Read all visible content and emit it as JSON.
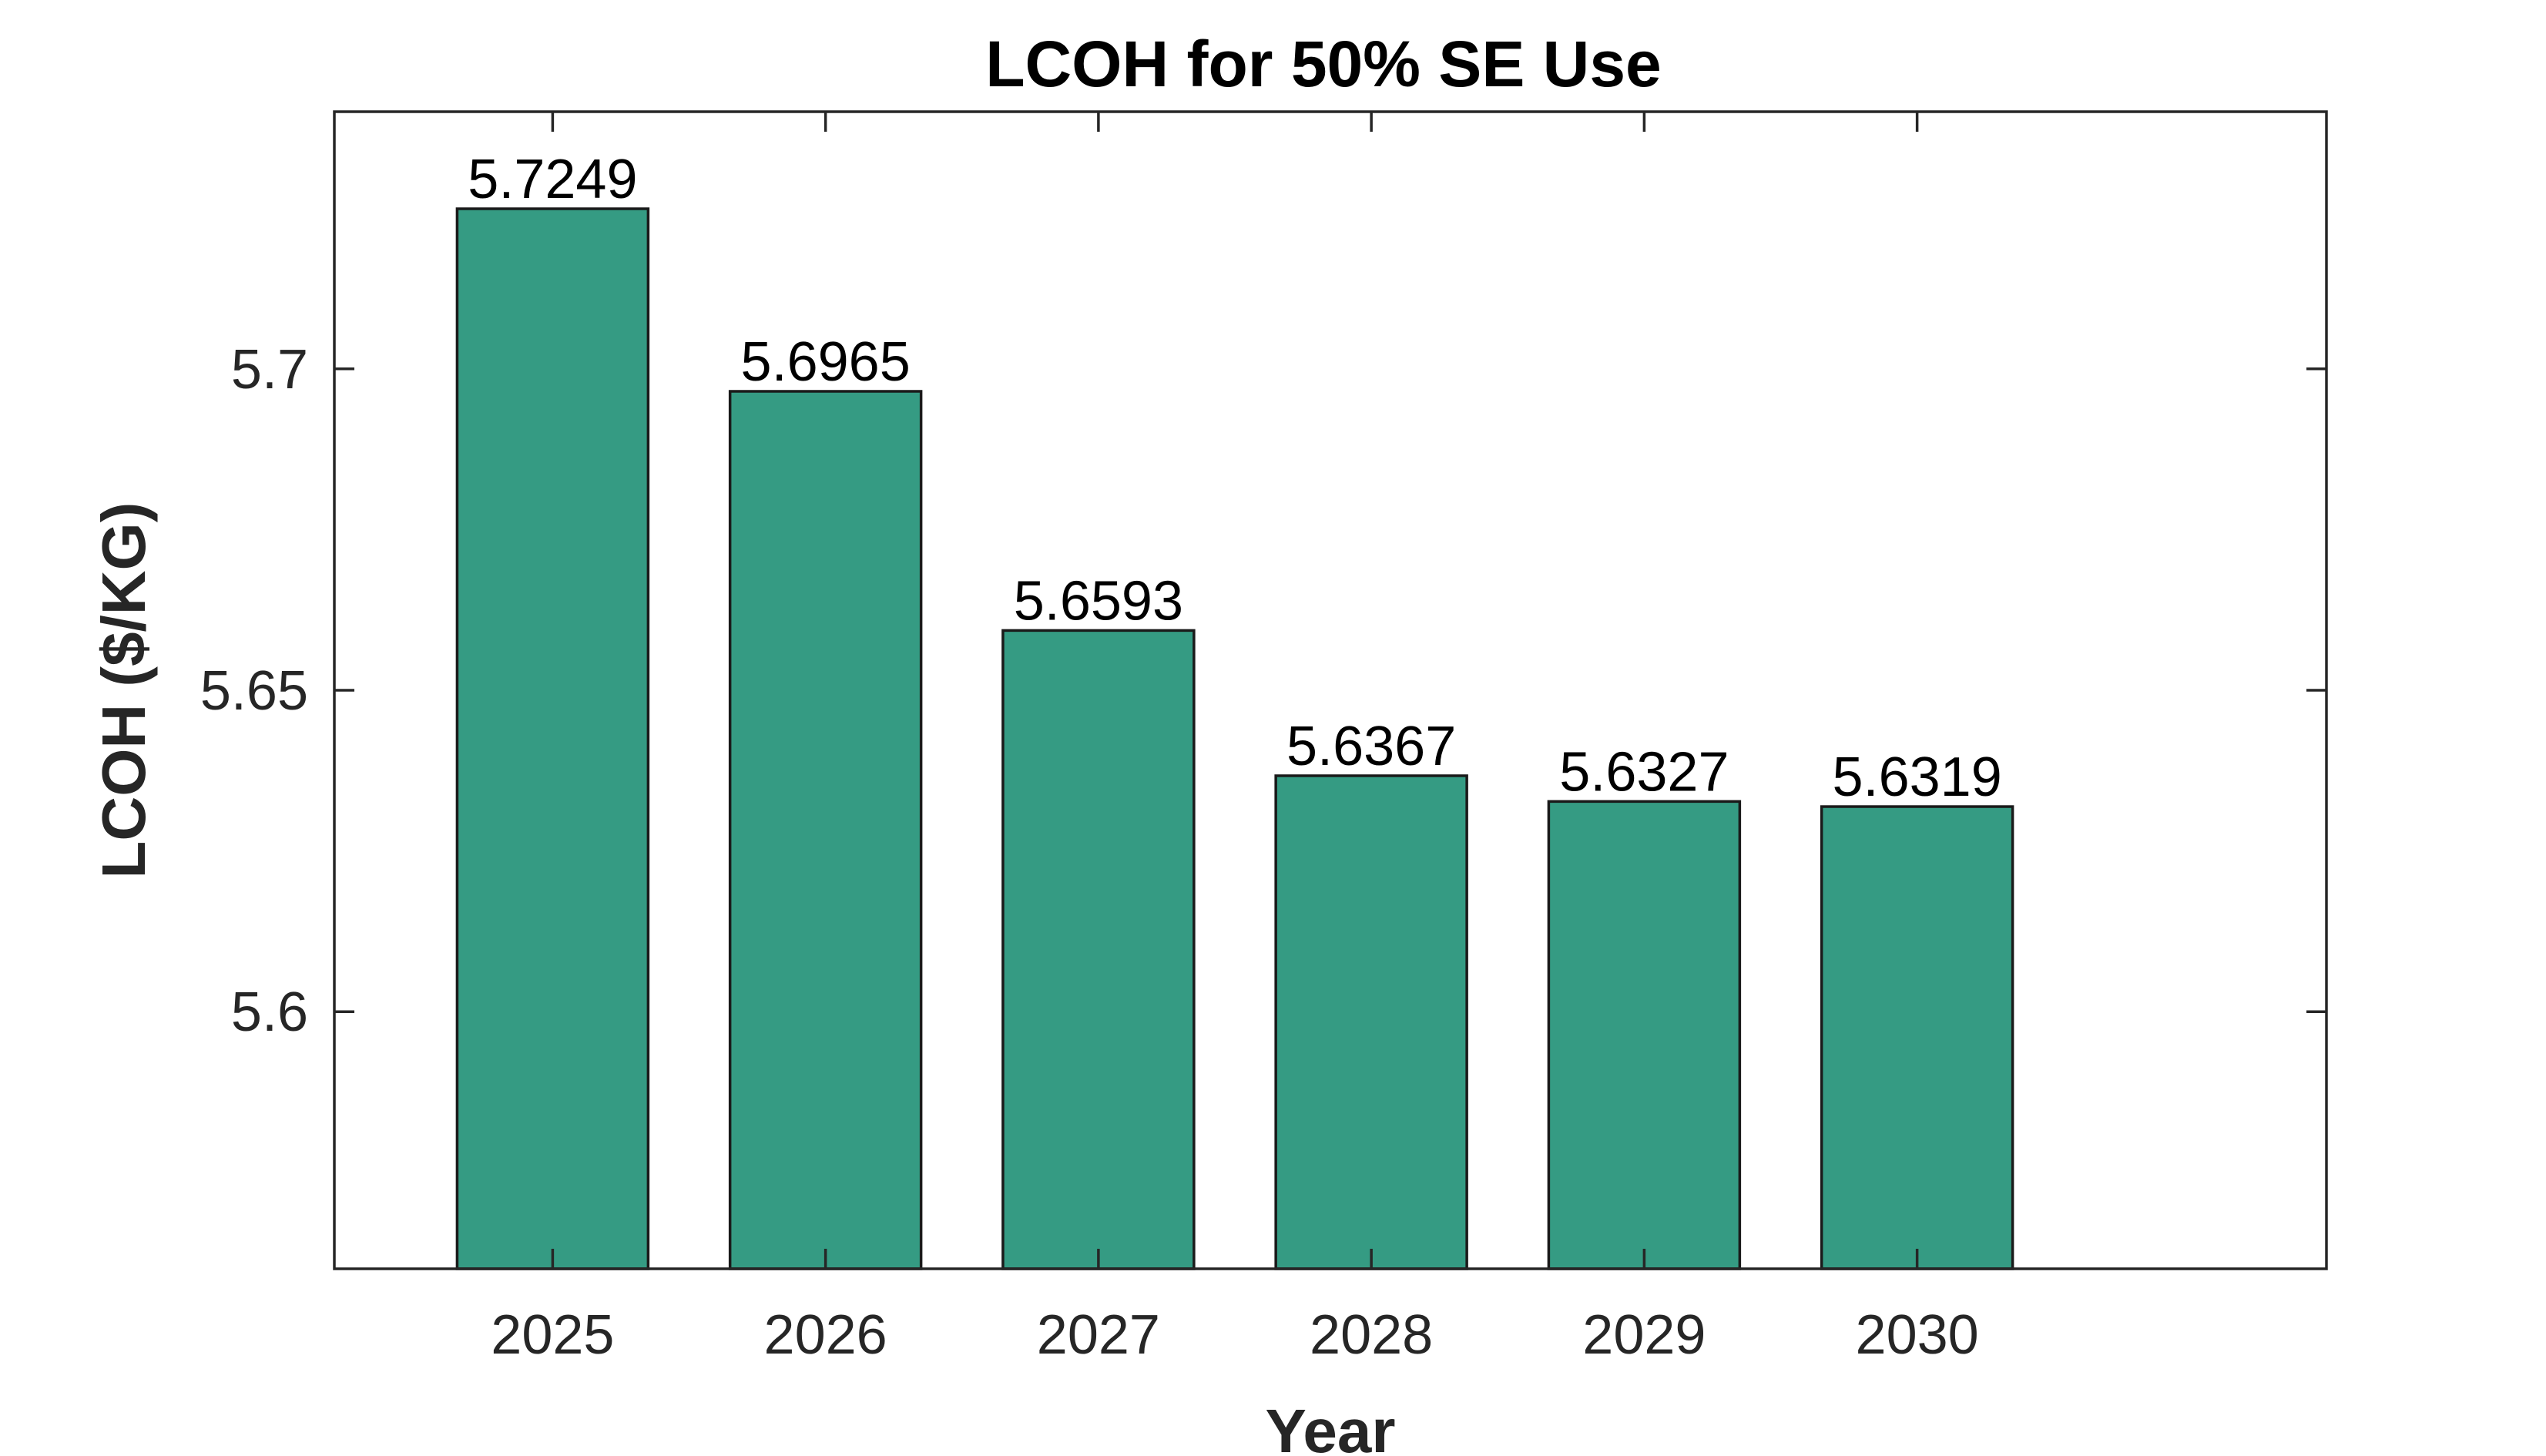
{
  "chart_data": {
    "type": "bar",
    "title": "LCOH for 50% SE Use",
    "xlabel": "Year",
    "ylabel": "LCOH ($/KG)",
    "categories": [
      "2025",
      "2026",
      "2027",
      "2028",
      "2029",
      "2030"
    ],
    "values": [
      5.7249,
      5.6965,
      5.6593,
      5.6367,
      5.6327,
      5.6319
    ],
    "data_labels": [
      "5.7249",
      "5.6965",
      "5.6593",
      "5.6367",
      "5.6327",
      "5.6319"
    ],
    "ylim": [
      5.56,
      5.74
    ],
    "xlim": [
      0.2,
      7.5
    ],
    "yticks": [
      5.6,
      5.65,
      5.7
    ],
    "ytick_labels": [
      "5.6",
      "5.65",
      "5.7"
    ],
    "grid": false,
    "legend": "none",
    "bar_color": "#359b83",
    "bar_edge_color": "#1a1a1a"
  }
}
